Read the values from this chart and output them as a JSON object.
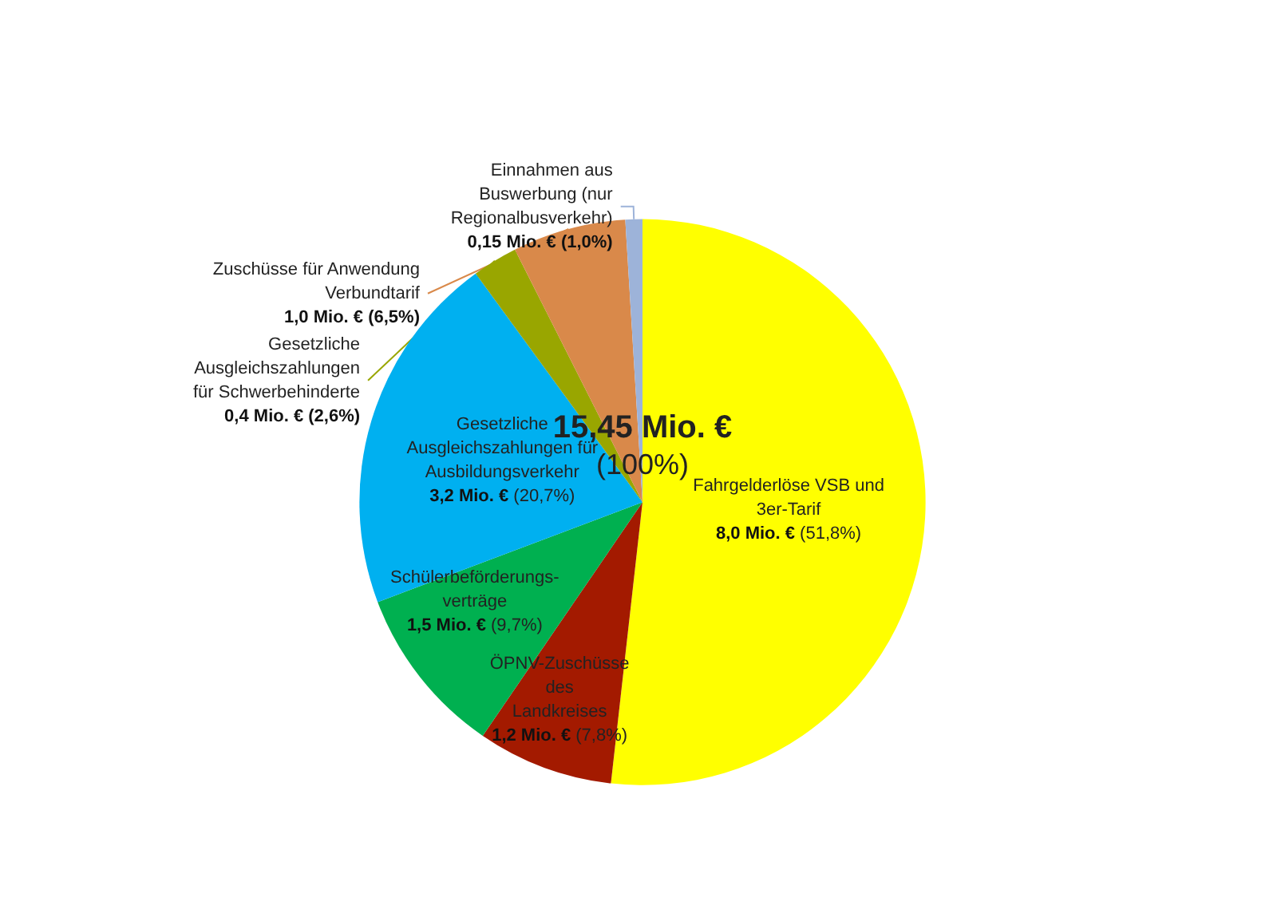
{
  "chart_data": {
    "type": "pie",
    "categories": [
      "Fahrgelderlöse VSB und\n3er-Tarif",
      "ÖPNV-Zuschüsse\ndes\nLandkreises",
      "Schülerbeförderungs-\nverträge",
      "Gesetzliche\nAusgleichszahlungen für\nAusbildungsverkehr",
      "Gesetzliche\nAusgleichszahlungen\nfür Schwerbehinderte",
      "Zuschüsse für Anwendung\nVerbundtarif",
      "Einnahmen aus\nBuswerbung (nur\nRegionalbusverkehr)"
    ],
    "values": [
      8.0,
      1.2,
      1.5,
      3.2,
      0.4,
      1.0,
      0.15
    ],
    "colors": [
      "#ffff00",
      "#a31a00",
      "#00b050",
      "#00b0f0",
      "#99a600",
      "#d9894a",
      "#9db3d9"
    ],
    "value_labels": [
      "8,0 Mio. € (51,8%)",
      "1,2 Mio. € (7,8%)",
      "1,5 Mio. € (9,7%)",
      "3,2 Mio. € (20,7%)",
      "0,4 Mio. € (2,6%)",
      "1,0 Mio. € (6,5%)",
      "0,15 Mio. € (1,0%)"
    ],
    "annotations": [
      "15,45 Mio. €",
      "(100%)"
    ],
    "legend": false
  }
}
